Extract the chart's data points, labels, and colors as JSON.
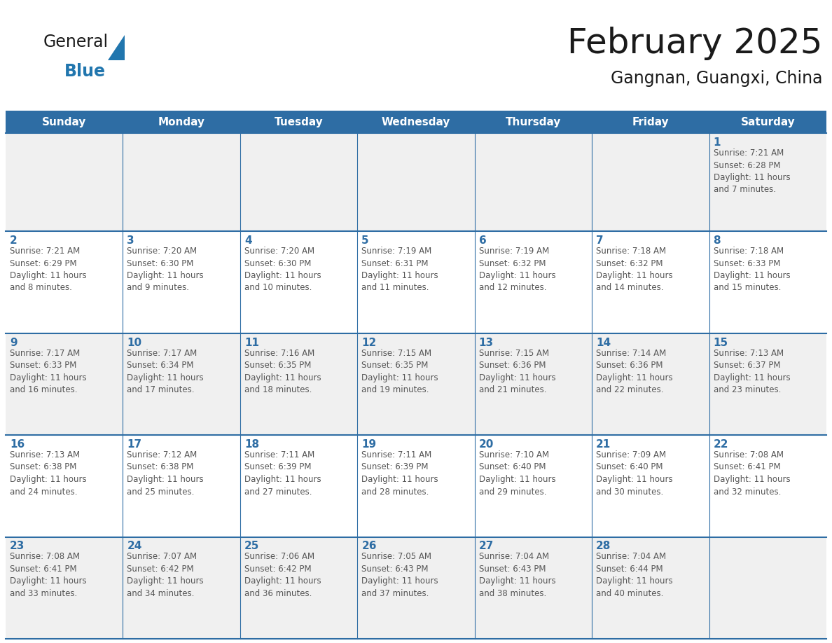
{
  "title": "February 2025",
  "subtitle": "Gangnan, Guangxi, China",
  "header_bg": "#2E6DA4",
  "header_text_color": "#FFFFFF",
  "cell_border_color": "#2E6DA4",
  "day_number_color": "#2E6DA4",
  "info_text_color": "#555555",
  "bg_color": "#FFFFFF",
  "alt_row_bg": "#F0F0F0",
  "days_of_week": [
    "Sunday",
    "Monday",
    "Tuesday",
    "Wednesday",
    "Thursday",
    "Friday",
    "Saturday"
  ],
  "calendar_data": [
    [
      null,
      null,
      null,
      null,
      null,
      null,
      1
    ],
    [
      2,
      3,
      4,
      5,
      6,
      7,
      8
    ],
    [
      9,
      10,
      11,
      12,
      13,
      14,
      15
    ],
    [
      16,
      17,
      18,
      19,
      20,
      21,
      22
    ],
    [
      23,
      24,
      25,
      26,
      27,
      28,
      null
    ]
  ],
  "sunrise": {
    "1": "7:21 AM",
    "2": "7:21 AM",
    "3": "7:20 AM",
    "4": "7:20 AM",
    "5": "7:19 AM",
    "6": "7:19 AM",
    "7": "7:18 AM",
    "8": "7:18 AM",
    "9": "7:17 AM",
    "10": "7:17 AM",
    "11": "7:16 AM",
    "12": "7:15 AM",
    "13": "7:15 AM",
    "14": "7:14 AM",
    "15": "7:13 AM",
    "16": "7:13 AM",
    "17": "7:12 AM",
    "18": "7:11 AM",
    "19": "7:11 AM",
    "20": "7:10 AM",
    "21": "7:09 AM",
    "22": "7:08 AM",
    "23": "7:08 AM",
    "24": "7:07 AM",
    "25": "7:06 AM",
    "26": "7:05 AM",
    "27": "7:04 AM",
    "28": "7:04 AM"
  },
  "sunset": {
    "1": "6:28 PM",
    "2": "6:29 PM",
    "3": "6:30 PM",
    "4": "6:30 PM",
    "5": "6:31 PM",
    "6": "6:32 PM",
    "7": "6:32 PM",
    "8": "6:33 PM",
    "9": "6:33 PM",
    "10": "6:34 PM",
    "11": "6:35 PM",
    "12": "6:35 PM",
    "13": "6:36 PM",
    "14": "6:36 PM",
    "15": "6:37 PM",
    "16": "6:38 PM",
    "17": "6:38 PM",
    "18": "6:39 PM",
    "19": "6:39 PM",
    "20": "6:40 PM",
    "21": "6:40 PM",
    "22": "6:41 PM",
    "23": "6:41 PM",
    "24": "6:42 PM",
    "25": "6:42 PM",
    "26": "6:43 PM",
    "27": "6:43 PM",
    "28": "6:44 PM"
  },
  "daylight": {
    "1": "11 hours and 7 minutes.",
    "2": "11 hours and 8 minutes.",
    "3": "11 hours and 9 minutes.",
    "4": "11 hours and 10 minutes.",
    "5": "11 hours and 11 minutes.",
    "6": "11 hours and 12 minutes.",
    "7": "11 hours and 14 minutes.",
    "8": "11 hours and 15 minutes.",
    "9": "11 hours and 16 minutes.",
    "10": "11 hours and 17 minutes.",
    "11": "11 hours and 18 minutes.",
    "12": "11 hours and 19 minutes.",
    "13": "11 hours and 21 minutes.",
    "14": "11 hours and 22 minutes.",
    "15": "11 hours and 23 minutes.",
    "16": "11 hours and 24 minutes.",
    "17": "11 hours and 25 minutes.",
    "18": "11 hours and 27 minutes.",
    "19": "11 hours and 28 minutes.",
    "20": "11 hours and 29 minutes.",
    "21": "11 hours and 30 minutes.",
    "22": "11 hours and 32 minutes.",
    "23": "11 hours and 33 minutes.",
    "24": "11 hours and 34 minutes.",
    "25": "11 hours and 36 minutes.",
    "26": "11 hours and 37 minutes.",
    "27": "11 hours and 38 minutes.",
    "28": "11 hours and 40 minutes."
  },
  "logo_general_color": "#1a1a1a",
  "logo_blue_color": "#2176AE",
  "title_color": "#1a1a1a",
  "subtitle_color": "#1a1a1a",
  "title_fontsize": 36,
  "subtitle_fontsize": 17,
  "header_fontsize": 11,
  "day_num_fontsize": 11,
  "info_fontsize": 8.5
}
